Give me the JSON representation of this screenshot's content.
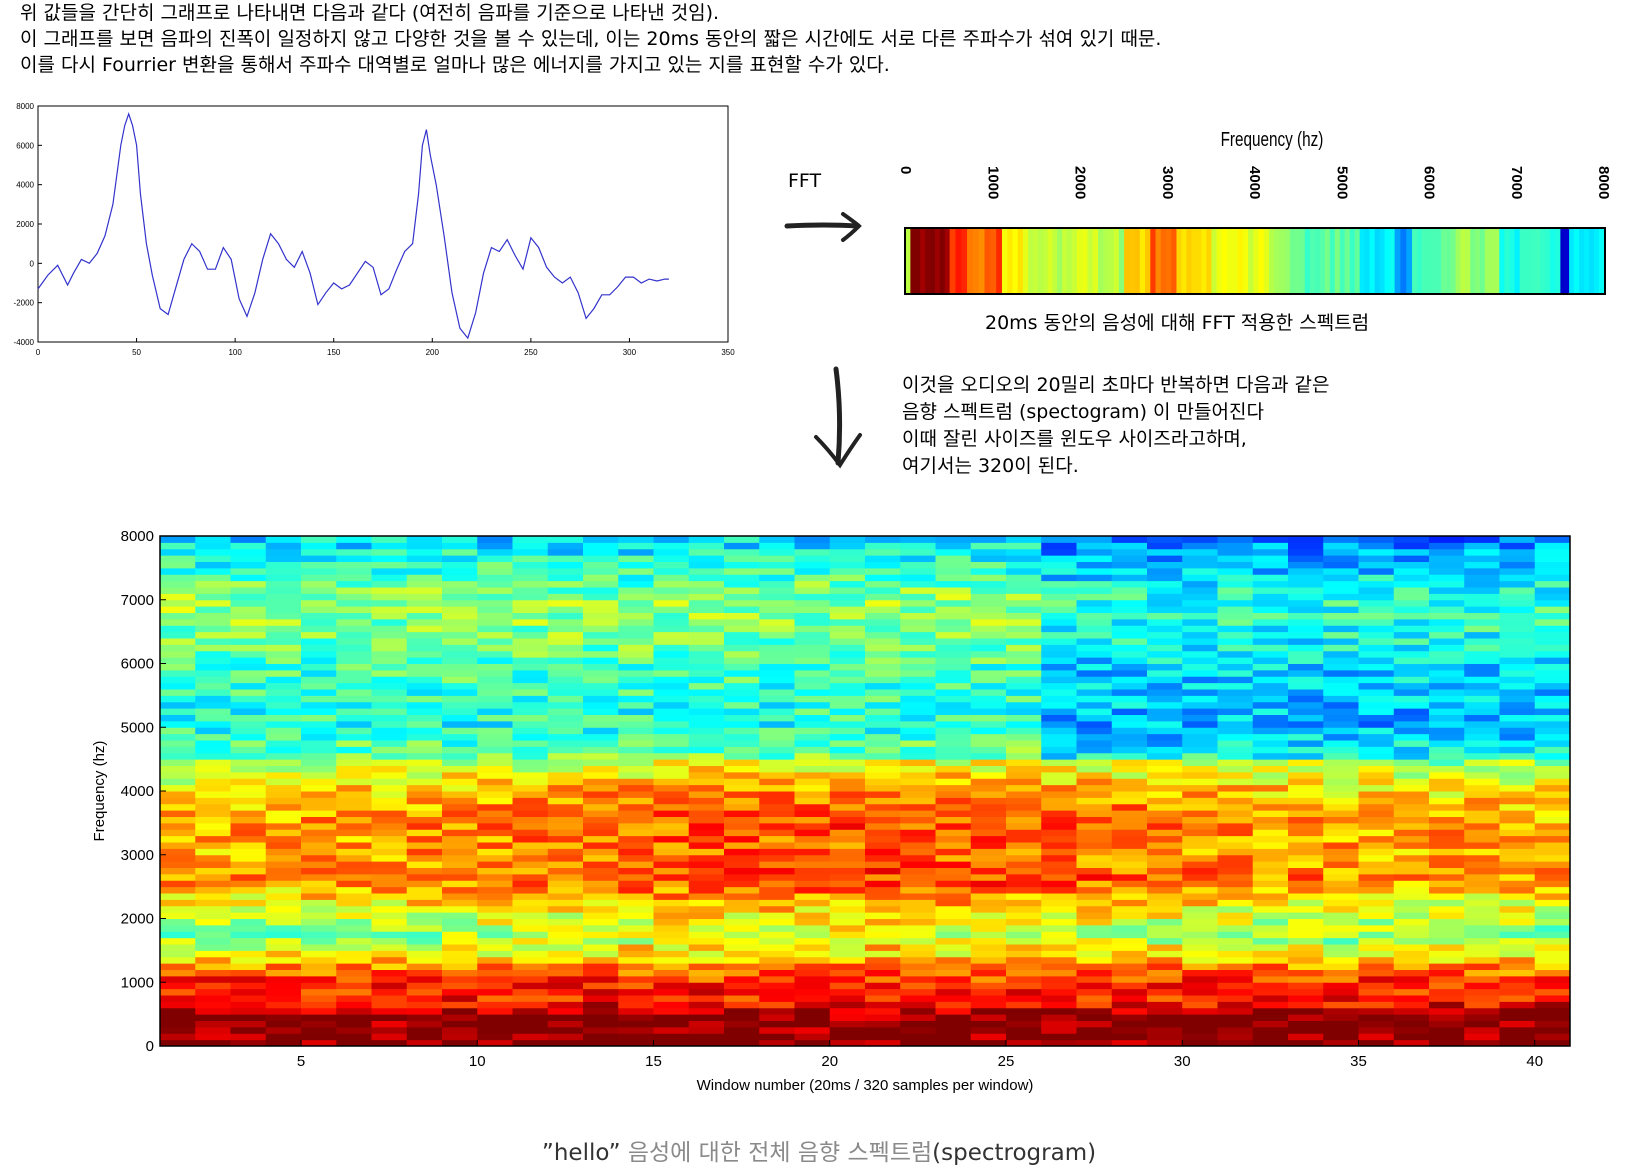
{
  "intro": {
    "line1": "위 값들을 간단히 그래프로 나타내면 다음과 같다 (여전히 음파를 기준으로 나타낸 것임).",
    "line2": "이 그래프를 보면 음파의 진폭이 일정하지 않고 다양한 것을 볼 수 있는데, 이는 20ms 동안의 짧은 시간에도 서로 다른 주파수가 섞여 있기 때문.",
    "line3": "이를 다시 Fourrier 변환을 통해서 주파수 대역별로 얼마나 많은 에너지를 가지고 있는 지를 표현할 수가 있다."
  },
  "fft_label": "FFT",
  "spectrum_caption": "20ms 동안의 음성에 대해 FFT 적용한 스펙트럼",
  "note": {
    "line1": "이것을 오디오의 20밀리 초마다 반복하면 다음과 같은",
    "line2": "음향 스펙트럼 (spectogram) 이 만들어진다",
    "line3": "이때 잘린 사이즈를 윈도우 사이즈라고하며,",
    "line4": "여기서는 320이 된다."
  },
  "bottom_caption": {
    "quoted": "”hello”",
    "middle": " 음성에 대한 전체 음향 스펙트럼",
    "paren": "(spectrogram)"
  },
  "colors": {
    "waveform_line": "#3333cc",
    "jet_red": "#ff0000",
    "jet_yellow": "#ffff00",
    "jet_cyan": "#00ffff",
    "jet_blue": "#0000ff"
  },
  "chart_data": [
    {
      "type": "line",
      "title": "",
      "xlabel": "",
      "ylabel": "",
      "xlim": [
        0,
        350
      ],
      "ylim": [
        -4000,
        8000
      ],
      "xticks": [
        "0",
        "50",
        "100",
        "150",
        "200",
        "250",
        "300",
        "350"
      ],
      "yticks": [
        "8000",
        "6000",
        "4000",
        "2000",
        "0",
        "-2000",
        "-4000"
      ],
      "x": [
        0,
        5,
        10,
        15,
        18,
        22,
        26,
        30,
        34,
        38,
        42,
        44,
        46,
        48,
        50,
        52,
        55,
        58,
        62,
        66,
        70,
        74,
        78,
        82,
        86,
        90,
        94,
        98,
        102,
        106,
        110,
        114,
        118,
        122,
        126,
        130,
        134,
        138,
        142,
        146,
        150,
        154,
        158,
        162,
        166,
        170,
        174,
        178,
        182,
        186,
        190,
        193,
        195,
        197,
        199,
        202,
        206,
        210,
        214,
        218,
        222,
        226,
        230,
        234,
        238,
        242,
        246,
        250,
        254,
        258,
        262,
        266,
        270,
        274,
        278,
        282,
        286,
        290,
        294,
        298,
        302,
        306,
        310,
        314,
        318,
        320
      ],
      "y": [
        -1300,
        -600,
        -100,
        -1100,
        -500,
        200,
        0,
        500,
        1400,
        3000,
        6000,
        7000,
        7600,
        7000,
        6000,
        3500,
        1000,
        -600,
        -2300,
        -2600,
        -1200,
        200,
        1000,
        600,
        -300,
        -300,
        800,
        200,
        -1800,
        -2700,
        -1500,
        200,
        1500,
        1000,
        200,
        -200,
        600,
        -500,
        -2100,
        -1500,
        -1000,
        -1300,
        -1100,
        -500,
        100,
        -200,
        -1600,
        -1300,
        -300,
        600,
        1000,
        3500,
        6000,
        6800,
        5500,
        4000,
        1400,
        -1500,
        -3300,
        -3800,
        -2500,
        -500,
        800,
        600,
        1200,
        400,
        -300,
        1300,
        800,
        -200,
        -700,
        -1000,
        -700,
        -1500,
        -2800,
        -2300,
        -1600,
        -1600,
        -1200,
        -700,
        -700,
        -1000,
        -800,
        -900,
        -800,
        -800
      ]
    },
    {
      "type": "heatmap",
      "title": "Frequency (hz)",
      "xlabel": "",
      "ylabel": "",
      "xlim": [
        0,
        8000
      ],
      "xticks": [
        "0",
        "1000",
        "2000",
        "3000",
        "4000",
        "5000",
        "6000",
        "7000",
        "8000"
      ],
      "colormap": "jet",
      "bands": [
        {
          "from": 0,
          "to": 50,
          "level": 0.6
        },
        {
          "from": 50,
          "to": 500,
          "level": 1.0
        },
        {
          "from": 500,
          "to": 700,
          "level": 0.85
        },
        {
          "from": 700,
          "to": 900,
          "level": 0.75
        },
        {
          "from": 900,
          "to": 1100,
          "level": 0.8
        },
        {
          "from": 1100,
          "to": 1400,
          "level": 0.62
        },
        {
          "from": 1400,
          "to": 1900,
          "level": 0.55
        },
        {
          "from": 1900,
          "to": 2200,
          "level": 0.6
        },
        {
          "from": 2200,
          "to": 2500,
          "level": 0.55
        },
        {
          "from": 2500,
          "to": 2800,
          "level": 0.68
        },
        {
          "from": 2800,
          "to": 3100,
          "level": 0.78
        },
        {
          "from": 3100,
          "to": 3500,
          "level": 0.64
        },
        {
          "from": 3500,
          "to": 4100,
          "level": 0.6
        },
        {
          "from": 4100,
          "to": 4400,
          "level": 0.56
        },
        {
          "from": 4400,
          "to": 5200,
          "level": 0.46
        },
        {
          "from": 5200,
          "to": 5600,
          "level": 0.36
        },
        {
          "from": 5600,
          "to": 5800,
          "level": 0.25
        },
        {
          "from": 5800,
          "to": 6300,
          "level": 0.45
        },
        {
          "from": 6300,
          "to": 6800,
          "level": 0.52
        },
        {
          "from": 6800,
          "to": 7500,
          "level": 0.4
        },
        {
          "from": 7500,
          "to": 7600,
          "level": 0.05
        },
        {
          "from": 7600,
          "to": 8000,
          "level": 0.35
        }
      ]
    },
    {
      "type": "heatmap",
      "title": "",
      "xlabel": "Window number (20ms / 320 samples per window)",
      "ylabel": "Frequency (hz)",
      "xlim": [
        1,
        41
      ],
      "ylim": [
        0,
        8000
      ],
      "xticks": [
        "5",
        "10",
        "15",
        "20",
        "25",
        "30",
        "35",
        "40"
      ],
      "yticks": [
        "0",
        "1000",
        "2000",
        "3000",
        "4000",
        "5000",
        "6000",
        "7000",
        "8000"
      ],
      "colormap": "jet",
      "windows": 40,
      "frequency_bins": 80,
      "frequency_profile": [
        {
          "f": 0,
          "level": 1.0
        },
        {
          "f": 500,
          "level": 0.98
        },
        {
          "f": 700,
          "level": 0.86
        },
        {
          "f": 1000,
          "level": 0.84
        },
        {
          "f": 1300,
          "level": 0.72
        },
        {
          "f": 1700,
          "level": 0.48
        },
        {
          "f": 2100,
          "level": 0.56
        },
        {
          "f": 2600,
          "level": 0.72
        },
        {
          "f": 3000,
          "level": 0.68
        },
        {
          "f": 3500,
          "level": 0.7
        },
        {
          "f": 4000,
          "level": 0.64
        },
        {
          "f": 4500,
          "level": 0.5
        },
        {
          "f": 5000,
          "level": 0.4
        },
        {
          "f": 5500,
          "level": 0.42
        },
        {
          "f": 6000,
          "level": 0.44
        },
        {
          "f": 6500,
          "level": 0.5
        },
        {
          "f": 7000,
          "level": 0.52
        },
        {
          "f": 7500,
          "level": 0.42
        },
        {
          "f": 8000,
          "level": 0.34
        }
      ]
    }
  ]
}
